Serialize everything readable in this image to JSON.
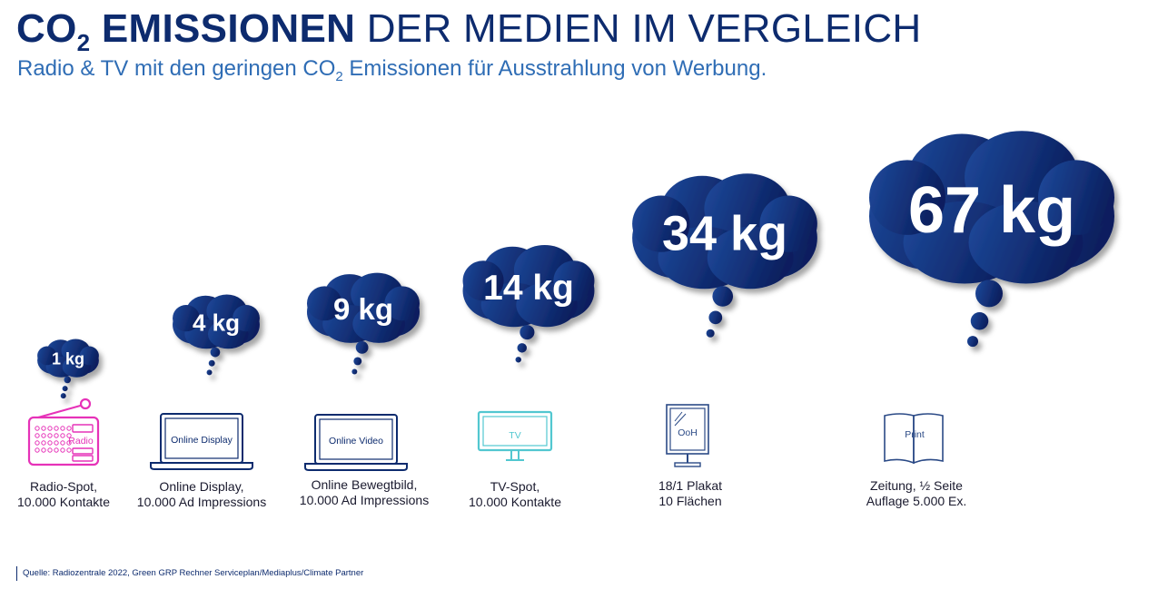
{
  "header": {
    "title_co": "CO",
    "title_sub": "2",
    "title_bold": "EMISSIONEN",
    "title_rest": "DER MEDIEN IM VERGLEICH",
    "subtitle_pre": "Radio & TV mit den geringen CO",
    "subtitle_sub": "2",
    "subtitle_post": "Emissionen für Ausstrahlung von Werbung."
  },
  "chart_data": {
    "type": "bar",
    "title": "CO2 EMISSIONEN DER MEDIEN IM VERGLEICH",
    "subtitle": "Radio & TV mit den geringen CO2 Emissionen für Ausstrahlung von Werbung.",
    "unit": "kg",
    "categories": [
      "Radio-Spot, 10.000 Kontakte",
      "Online Display, 10.000 Ad Impressions",
      "Online Bewegtbild, 10.000 Ad Impressions",
      "TV-Spot, 10.000 Kontakte",
      "18/1 Plakat 10 Flächen",
      "Zeitung, ½ Seite Auflage 5.000 Ex."
    ],
    "values": [
      1,
      4,
      9,
      14,
      34,
      67
    ],
    "value_labels": [
      "1 kg",
      "4 kg",
      "9 kg",
      "14 kg",
      "34 kg",
      "67 kg"
    ],
    "icon_labels": [
      "Radio",
      "Online Display",
      "Online Video",
      "TV",
      "OoH",
      "Print"
    ],
    "icons": [
      "radio-icon",
      "laptop-icon",
      "laptop-icon",
      "tv-icon",
      "billboard-icon",
      "newspaper-icon"
    ],
    "colors": {
      "cloud_light": "#1e4a9c",
      "cloud_dark": "#0b1f5e",
      "radio": "#e632b8",
      "laptop": "#0d2b6e",
      "tv": "#52c7d0",
      "ooh": "#2b4a86",
      "print": "#2b4a86"
    }
  },
  "items": [
    {
      "line1": "Radio-Spot,",
      "line2": "10.000 Kontakte"
    },
    {
      "line1": "Online Display,",
      "line2": "10.000 Ad Impressions"
    },
    {
      "line1": "Online Bewegtbild,",
      "line2": "10.000 Ad Impressions"
    },
    {
      "line1": "TV-Spot,",
      "line2": "10.000 Kontakte"
    },
    {
      "line1": "18/1 Plakat",
      "line2": "10 Flächen"
    },
    {
      "line1": "Zeitung, ½ Seite",
      "line2": "Auflage 5.000 Ex."
    }
  ],
  "source": "Quelle: Radiozentrale 2022, Green GRP Rechner Serviceplan/Mediaplus/Climate Partner"
}
